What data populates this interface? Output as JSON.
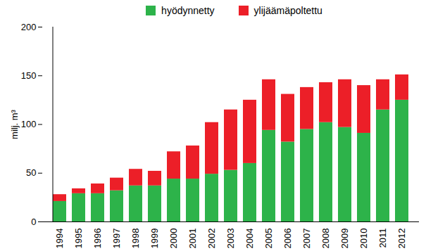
{
  "chart_data": {
    "type": "bar",
    "stacked": true,
    "y_label": "milj. m³",
    "categories": [
      "1994",
      "1995",
      "1996",
      "1997",
      "1998",
      "1999",
      "2000",
      "2001",
      "2002",
      "2003",
      "2004",
      "2005",
      "2006",
      "2007",
      "2008",
      "2009",
      "2010",
      "2011",
      "2012"
    ],
    "series": [
      {
        "name": "hyödynnetty",
        "color": "#2db34a",
        "values": [
          21,
          29,
          29,
          32,
          37,
          37,
          44,
          44,
          49,
          53,
          60,
          94,
          82,
          95,
          102,
          97,
          91,
          115,
          125
        ]
      },
      {
        "name": "ylijäämäpoltettu",
        "color": "#ec1f28",
        "values": [
          7,
          5,
          10,
          13,
          17,
          15,
          28,
          34,
          53,
          62,
          65,
          52,
          49,
          43,
          41,
          49,
          49,
          31,
          26
        ]
      }
    ],
    "ylim": [
      0,
      200
    ],
    "yticks": [
      0,
      50,
      100,
      150,
      200
    ],
    "grid": false,
    "legend": "top"
  }
}
